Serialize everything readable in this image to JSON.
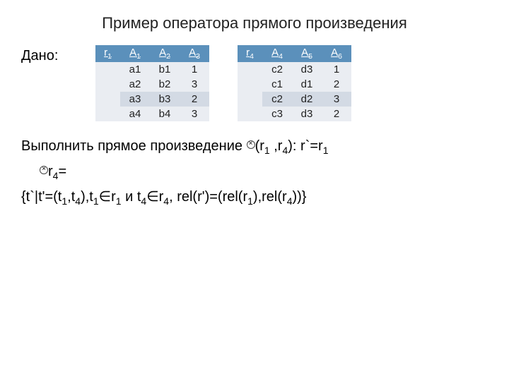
{
  "title": "Пример оператора прямого произведения",
  "given_label": "Дано:",
  "tables": {
    "t1": {
      "header_cells": [
        "r",
        "A",
        "A",
        "A"
      ],
      "header_subs": [
        "1",
        "1",
        "2",
        "3"
      ],
      "header_color": "#5b90bb",
      "rows": [
        {
          "cells": [
            "",
            "a1",
            "b1",
            "1"
          ],
          "shade": "light"
        },
        {
          "cells": [
            "",
            "a2",
            "b2",
            "3"
          ],
          "shade": "light"
        },
        {
          "cells": [
            "",
            "a3",
            "b3",
            "2"
          ],
          "shade": "mid"
        },
        {
          "cells": [
            "",
            "a4",
            "b4",
            "3"
          ],
          "shade": "light"
        }
      ]
    },
    "t2": {
      "header_cells": [
        "r",
        "A",
        "A",
        "A"
      ],
      "header_subs": [
        "4",
        "4",
        "5",
        "6"
      ],
      "header_color": "#5b90bb",
      "rows": [
        {
          "cells": [
            "",
            "c2",
            "d3",
            "1"
          ],
          "shade": "light"
        },
        {
          "cells": [
            "",
            "c1",
            "d1",
            "2"
          ],
          "shade": "light"
        },
        {
          "cells": [
            "",
            "c2",
            "d2",
            "3"
          ],
          "shade": "mid"
        },
        {
          "cells": [
            "",
            "c3",
            "d3",
            "2"
          ],
          "shade": "light"
        }
      ]
    }
  },
  "desc": {
    "line1_a": "Выполнить прямое произведение ",
    "line1_b": "(r",
    "line1_c": " ,r",
    "line1_d": "): r`=r",
    "line2_a": "r",
    "line2_b": "=",
    "line3_a": "{t`|t'=(t",
    "line3_b": ",t",
    "line3_c": "),t",
    "line3_d": "∈r",
    "line3_e": " и t",
    "line3_f": "∈r",
    "line3_g": ", rel(r')=(rel(r",
    "line3_h": "),rel(r",
    "line3_i": "))}",
    "subs": {
      "one": "1",
      "four": "4"
    }
  },
  "style": {
    "row_light": "#eaedf2",
    "row_mid": "#d3dae4",
    "bg": "#ffffff",
    "text": "#000000"
  }
}
